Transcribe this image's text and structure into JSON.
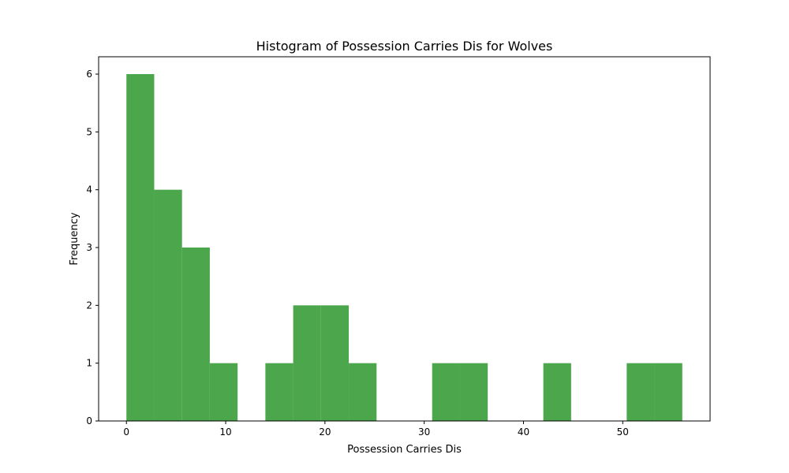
{
  "chart_data": {
    "type": "bar",
    "title": "Histogram of Possession Carries Dis for Wolves",
    "xlabel": "Possession Carries Dis",
    "ylabel": "Frequency",
    "xlim": [
      -2.8,
      58.8
    ],
    "ylim": [
      0,
      6.3
    ],
    "xticks": [
      0,
      10,
      20,
      30,
      40,
      50
    ],
    "yticks": [
      0,
      1,
      2,
      3,
      4,
      5,
      6
    ],
    "bar_color": "#4ca64c",
    "bins": [
      {
        "x0": 0.0,
        "x1": 2.8,
        "count": 6
      },
      {
        "x0": 2.8,
        "x1": 5.6,
        "count": 4
      },
      {
        "x0": 5.6,
        "x1": 8.4,
        "count": 3
      },
      {
        "x0": 8.4,
        "x1": 11.2,
        "count": 1
      },
      {
        "x0": 11.2,
        "x1": 14.0,
        "count": 0
      },
      {
        "x0": 14.0,
        "x1": 16.8,
        "count": 1
      },
      {
        "x0": 16.8,
        "x1": 19.6,
        "count": 2
      },
      {
        "x0": 19.6,
        "x1": 22.4,
        "count": 2
      },
      {
        "x0": 22.4,
        "x1": 25.2,
        "count": 1
      },
      {
        "x0": 25.2,
        "x1": 28.0,
        "count": 0
      },
      {
        "x0": 28.0,
        "x1": 30.8,
        "count": 0
      },
      {
        "x0": 30.8,
        "x1": 33.6,
        "count": 1
      },
      {
        "x0": 33.6,
        "x1": 36.4,
        "count": 1
      },
      {
        "x0": 36.4,
        "x1": 39.2,
        "count": 0
      },
      {
        "x0": 39.2,
        "x1": 42.0,
        "count": 0
      },
      {
        "x0": 42.0,
        "x1": 44.8,
        "count": 1
      },
      {
        "x0": 44.8,
        "x1": 47.6,
        "count": 0
      },
      {
        "x0": 47.6,
        "x1": 50.4,
        "count": 0
      },
      {
        "x0": 50.4,
        "x1": 53.2,
        "count": 1
      },
      {
        "x0": 53.2,
        "x1": 56.0,
        "count": 1
      }
    ],
    "grid": false,
    "legend": "none"
  }
}
